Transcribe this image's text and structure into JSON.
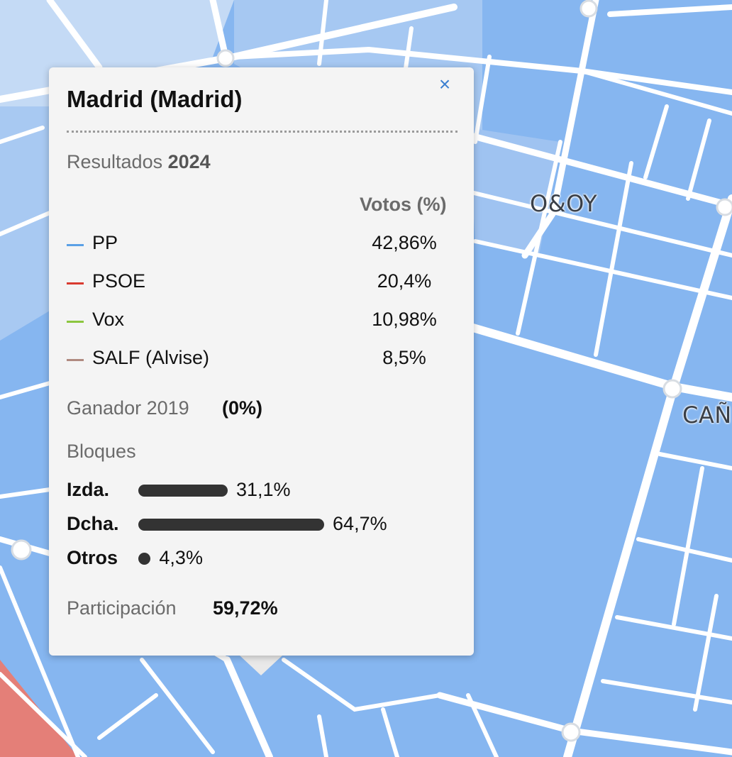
{
  "map": {
    "labels": [
      "O&OY",
      "CAÑ"
    ],
    "colors": {
      "pp_blue": "#86b6f0",
      "light_blue": "#a9cbf3",
      "psoe_red": "#e47f78",
      "roads": "#ffffff"
    }
  },
  "popup": {
    "close_icon": "×",
    "title": "Madrid (Madrid)",
    "results_label": "Resultados",
    "results_year": "2024",
    "votes_header": "Votos (%)",
    "parties": [
      {
        "name": "PP",
        "pct": "42,86%",
        "color": "#5aa0e6"
      },
      {
        "name": "PSOE",
        "pct": "20,4%",
        "color": "#d93b30"
      },
      {
        "name": "Vox",
        "pct": "10,98%",
        "color": "#8cc63f"
      },
      {
        "name": "SALF (Alvise)",
        "pct": "8,5%",
        "color": "#b08a80"
      }
    ],
    "winner_label": "Ganador 2019",
    "winner_value": "(0%)",
    "blocs_label": "Bloques",
    "blocs": [
      {
        "name": "Izda.",
        "pct_text": "31,1%",
        "value": 31.1
      },
      {
        "name": "Dcha.",
        "pct_text": "64,7%",
        "value": 64.7
      },
      {
        "name": "Otros",
        "pct_text": "4,3%",
        "value": 4.3
      }
    ],
    "turnout_label": "Participación",
    "turnout_value": "59,72%"
  }
}
